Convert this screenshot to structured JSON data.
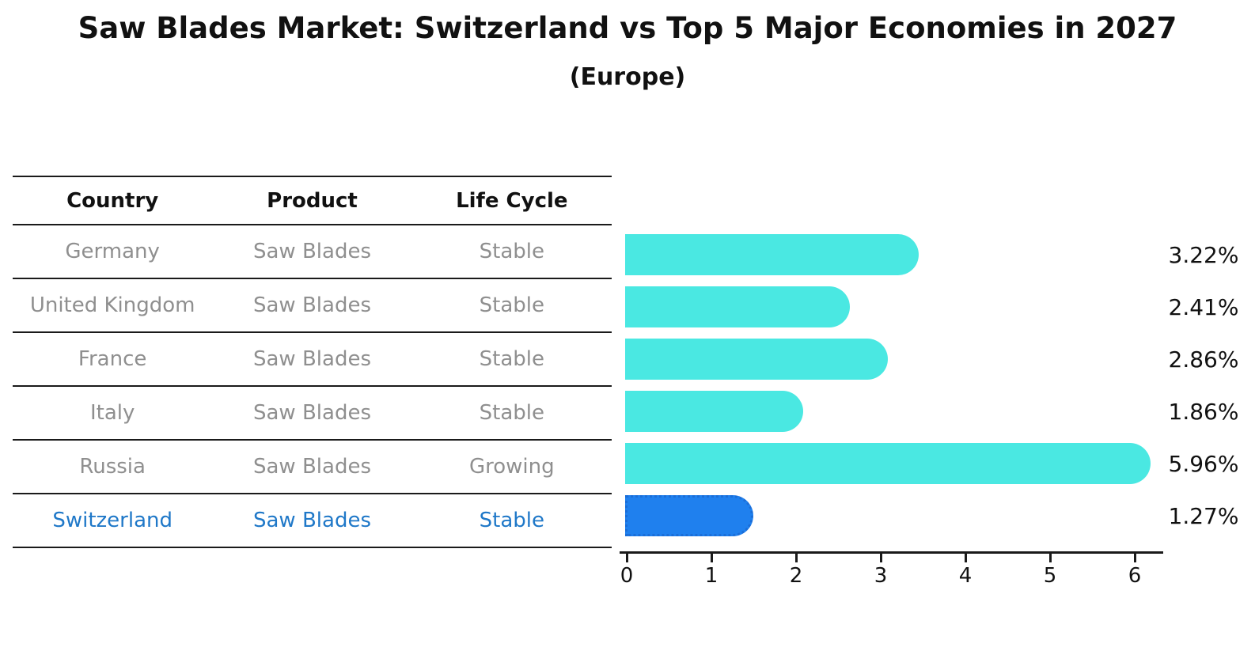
{
  "title": "Saw Blades Market: Switzerland vs Top 5 Major Economies in 2027",
  "subtitle": "(Europe)",
  "table": {
    "headers": [
      "Country",
      "Product",
      "Life Cycle"
    ],
    "rows": [
      {
        "country": "Germany",
        "product": "Saw Blades",
        "life_cycle": "Stable",
        "highlight": false
      },
      {
        "country": "United Kingdom",
        "product": "Saw Blades",
        "life_cycle": "Stable",
        "highlight": false
      },
      {
        "country": "France",
        "product": "Saw Blades",
        "life_cycle": "Stable",
        "highlight": false
      },
      {
        "country": "Italy",
        "product": "Saw Blades",
        "life_cycle": "Stable",
        "highlight": false
      },
      {
        "country": "Russia",
        "product": "Saw Blades",
        "life_cycle": "Growing",
        "highlight": false
      },
      {
        "country": "Switzerland",
        "product": "Saw Blades",
        "life_cycle": "Stable",
        "highlight": true
      }
    ]
  },
  "chart_data": {
    "type": "bar",
    "orientation": "horizontal",
    "title": "Saw Blades Market: Switzerland vs Top 5 Major Economies in 2027",
    "subtitle": "(Europe)",
    "categories": [
      "Germany",
      "United Kingdom",
      "France",
      "Italy",
      "Russia",
      "Switzerland"
    ],
    "values": [
      3.22,
      2.41,
      2.86,
      1.86,
      5.96,
      1.27
    ],
    "value_labels": [
      "3.22%",
      "2.41%",
      "2.86%",
      "1.86%",
      "5.96%",
      "1.27%"
    ],
    "highlight_index": 5,
    "xlabel": "",
    "ylabel": "",
    "xlim": [
      0,
      6.4
    ],
    "x_ticks": [
      0,
      1,
      2,
      3,
      4,
      5,
      6
    ],
    "grid": false,
    "legend": false
  },
  "colors": {
    "bar": "#4AE8E2",
    "highlight_bar": "#1F80EE",
    "highlight_border": "#1B6ED8",
    "highlight_text": "#1F78C8",
    "body_text": "#8F8F8F",
    "header_text": "#111111",
    "line": "#1A1A1A"
  }
}
